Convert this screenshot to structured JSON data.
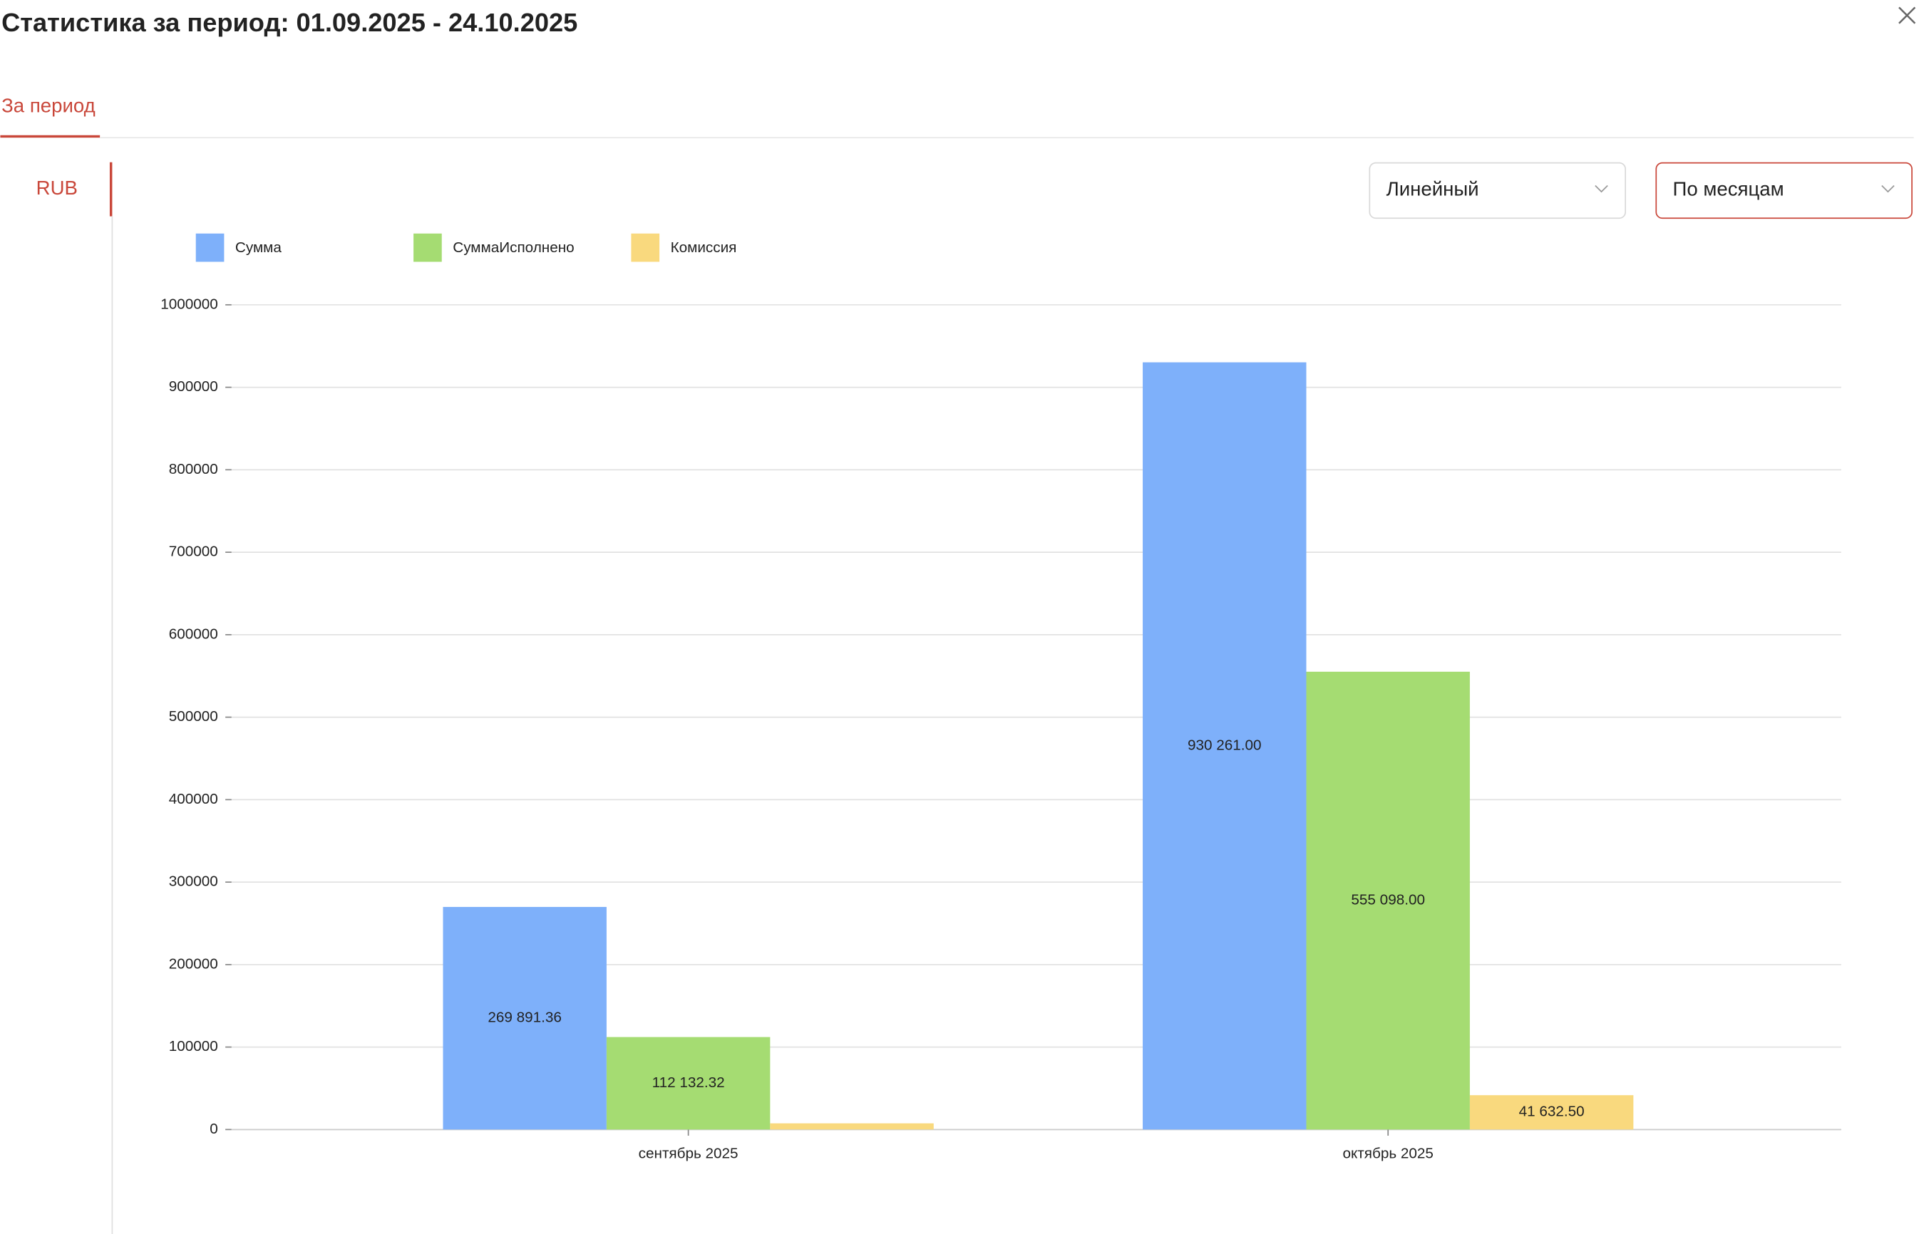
{
  "header": {
    "title": "Статистика за период: 01.09.2025 - 24.10.2025"
  },
  "tabs": [
    "За период"
  ],
  "sidebar": [
    "RUB"
  ],
  "controls": {
    "chart_type": "Линейный",
    "grouping": "По месяцам"
  },
  "chart_data": {
    "type": "bar",
    "categories": [
      "сентябрь 2025",
      "октябрь 2025"
    ],
    "series": [
      {
        "name": "Сумма",
        "color": "#7eb0fa",
        "values": [
          269891.36,
          930261.0
        ],
        "value_labels": [
          "269 891.36",
          "930 261.00"
        ]
      },
      {
        "name": "СуммаИсполнено",
        "color": "#a5dc72",
        "values": [
          112132.32,
          555098.0
        ],
        "value_labels": [
          "112 132.32",
          "555 098.00"
        ]
      },
      {
        "name": "Комиссия",
        "color": "#f9d97e",
        "values": [
          7500,
          41632.5
        ],
        "value_labels": [
          null,
          "41 632.50"
        ]
      }
    ],
    "ylim": [
      0,
      1000000
    ],
    "yticks": [
      0,
      100000,
      200000,
      300000,
      400000,
      500000,
      600000,
      700000,
      800000,
      900000,
      1000000
    ],
    "grid": true,
    "legend": "top-left"
  }
}
